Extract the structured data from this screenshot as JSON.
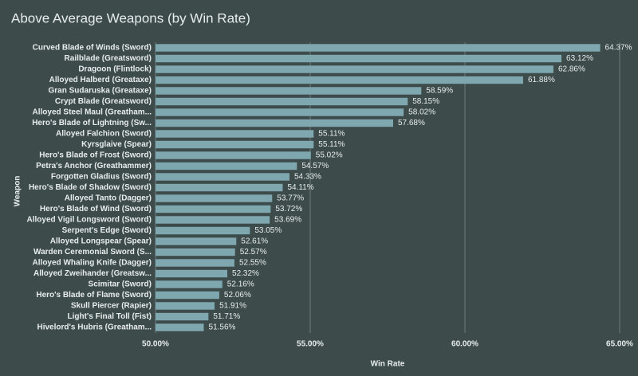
{
  "chart_data": {
    "type": "hbar",
    "title": "Above Average Weapons (by Win Rate)",
    "x_label": "Win Rate",
    "y_label": "Weapon",
    "color": "#7fa7b0",
    "grid": true,
    "categories": [
      "Curved Blade of Winds (Sword)",
      "Railblade (Greatsword)",
      "Dragoon (Flintlock)",
      "Alloyed Halberd (Greataxe)",
      "Gran Sudaruska (Greataxe)",
      "Crypt Blade (Greatsword)",
      "Alloyed Steel Maul (Greatham...",
      "Hero's Blade of Lightning (Sw...",
      "Alloyed Falchion (Sword)",
      "Kyrsglaive (Spear)",
      "Hero's Blade of Frost (Sword)",
      "Petra's Anchor (Greathammer)",
      "Forgotten Gladius (Sword)",
      "Hero's Blade of Shadow (Sword)",
      "Alloyed Tanto (Dagger)",
      "Hero's Blade of Wind (Sword)",
      "Alloyed Vigil Longsword (Sword)",
      "Serpent's Edge (Sword)",
      "Alloyed Longspear (Spear)",
      "Warden Ceremonial Sword (S...",
      "Alloyed Whaling Knife (Dagger)",
      "Alloyed Zweihander (Greatsw...",
      "Scimitar (Sword)",
      "Hero's Blade of Flame (Sword)",
      "Skull Piercer (Rapier)",
      "Light's Final Toll (Fist)",
      "Hivelord's Hubris (Greatham..."
    ],
    "values": [
      64.37,
      63.12,
      62.86,
      61.88,
      58.59,
      58.15,
      58.02,
      57.68,
      55.11,
      55.11,
      55.02,
      54.57,
      54.33,
      54.11,
      53.77,
      53.72,
      53.69,
      53.05,
      52.61,
      52.57,
      52.55,
      52.32,
      52.16,
      52.06,
      51.91,
      51.71,
      51.56
    ],
    "value_labels": [
      "64.37%",
      "63.12%",
      "62.86%",
      "61.88%",
      "58.59%",
      "58.15%",
      "58.02%",
      "57.68%",
      "55.11%",
      "55.11%",
      "55.02%",
      "54.57%",
      "54.33%",
      "54.11%",
      "53.77%",
      "53.72%",
      "53.69%",
      "53.05%",
      "52.61%",
      "52.57%",
      "52.55%",
      "52.32%",
      "52.16%",
      "52.06%",
      "51.91%",
      "51.71%",
      "51.56%"
    ],
    "xlim": [
      50,
      65
    ],
    "xticks": [
      {
        "value": 50,
        "label": "50.00%"
      },
      {
        "value": 55,
        "label": "55.00%"
      },
      {
        "value": 60,
        "label": "60.00%"
      },
      {
        "value": 65,
        "label": "65.00%"
      }
    ]
  }
}
